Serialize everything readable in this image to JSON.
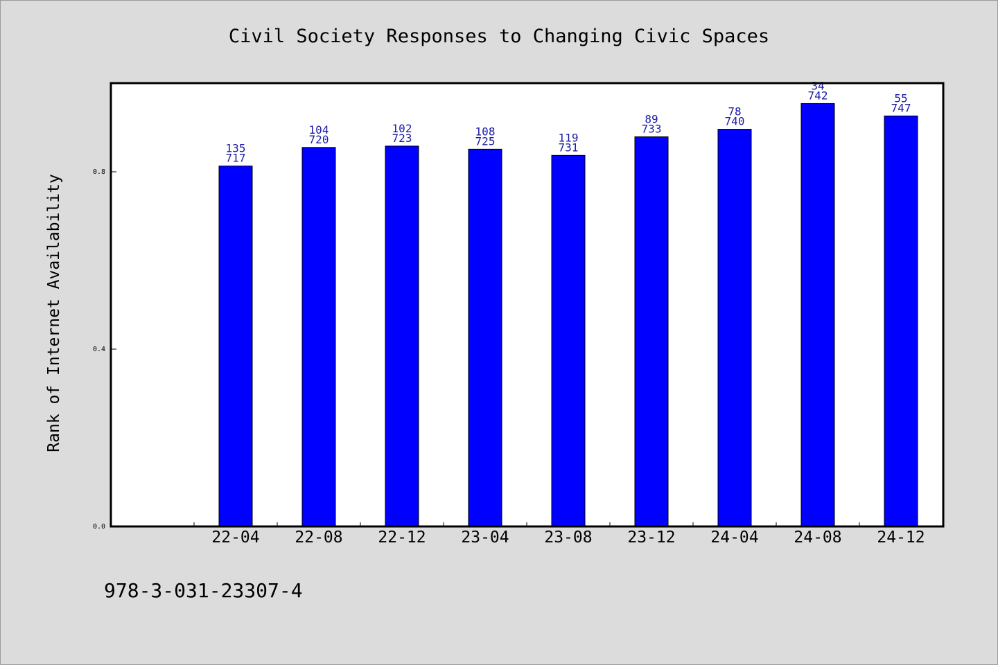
{
  "chart_data": {
    "type": "bar",
    "title": "Civil Society Responses to Changing Civic Spaces",
    "xlabel": "",
    "ylabel": "Rank of Internet Availability",
    "categories": [
      "22-04",
      "22-08",
      "22-12",
      "23-04",
      "23-08",
      "23-12",
      "24-04",
      "24-08",
      "24-12"
    ],
    "values": [
      0.813,
      0.855,
      0.858,
      0.851,
      0.837,
      0.879,
      0.896,
      0.954,
      0.926
    ],
    "data_labels": [
      [
        "135",
        "717"
      ],
      [
        "104",
        "720"
      ],
      [
        "102",
        "723"
      ],
      [
        "108",
        "725"
      ],
      [
        "119",
        "731"
      ],
      [
        "89",
        "733"
      ],
      [
        "78",
        "740"
      ],
      [
        "34",
        "742"
      ],
      [
        "55",
        "747"
      ]
    ],
    "yticks": [
      "0.0",
      "0.4",
      "0.8"
    ],
    "ytick_values": [
      0.0,
      0.4,
      0.8
    ],
    "ylim": [
      0,
      1.0
    ],
    "grid": false,
    "legend": "none",
    "bar_color": "#0000ff",
    "label_color": "#1a1aa6"
  },
  "footer": {
    "isbn": "978-3-031-23307-4"
  }
}
